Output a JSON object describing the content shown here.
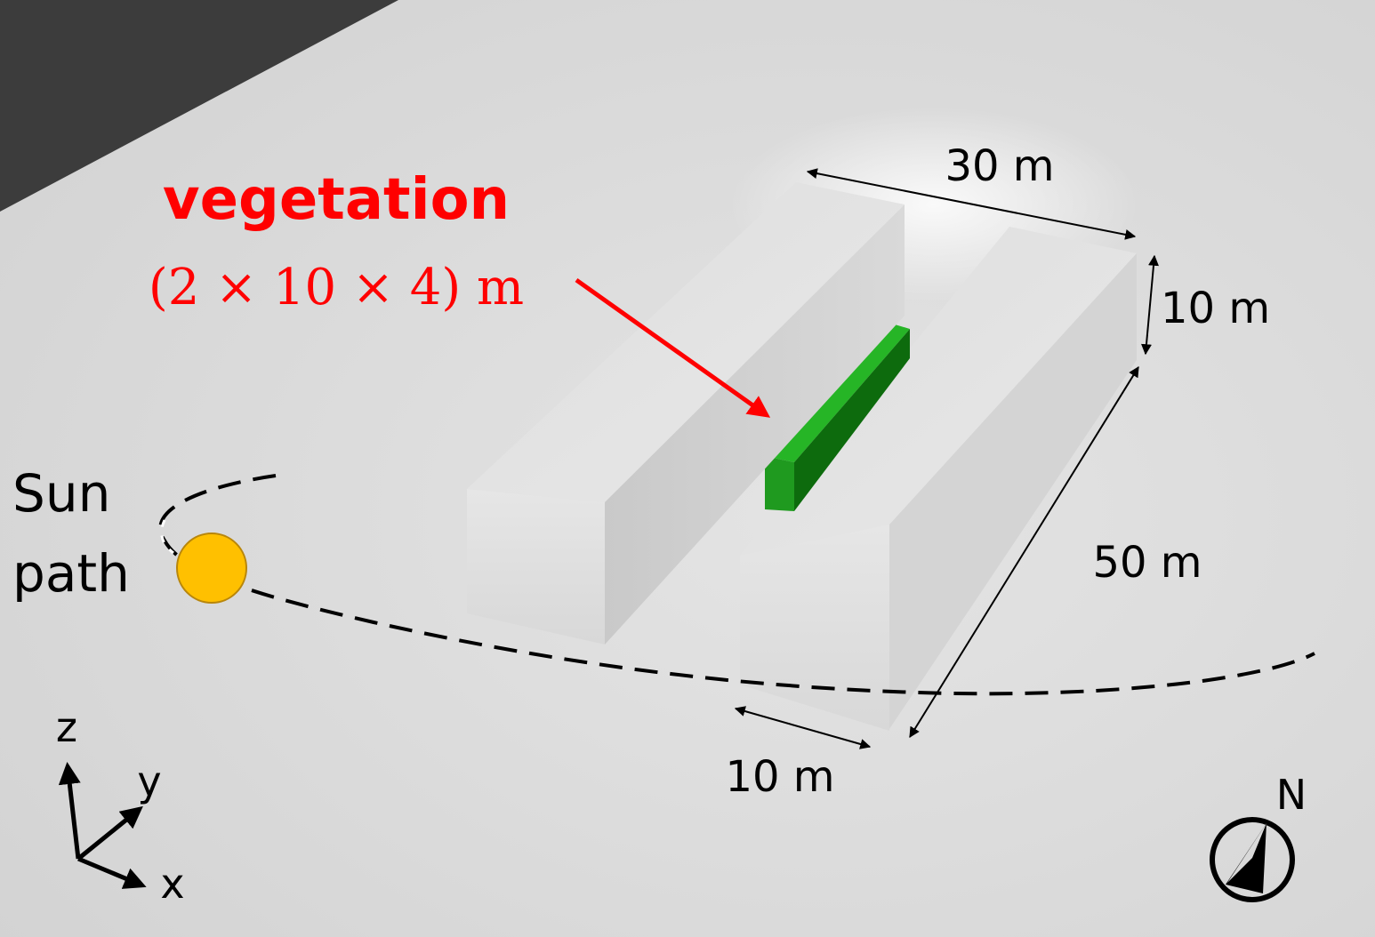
{
  "labels": {
    "vegetation_title": "vegetation",
    "vegetation_size": "(2 × 10 × 4) m",
    "width_top": "30 m",
    "height": "10 m",
    "length": "50 m",
    "width_bottom": "10 m",
    "sun_line1": "Sun",
    "sun_line2": "path",
    "axis_z": "z",
    "axis_y": "y",
    "axis_x": "x",
    "north": "N"
  },
  "colors": {
    "annotation": "#ff0000",
    "vegetation": "#1fa51f",
    "sun": "#ffc000",
    "ground": "#dcdcdc",
    "building": "#e2e2e2",
    "background": "#3c3c3c"
  },
  "icons": {
    "sun": "sun-icon",
    "compass": "north-compass-icon"
  }
}
